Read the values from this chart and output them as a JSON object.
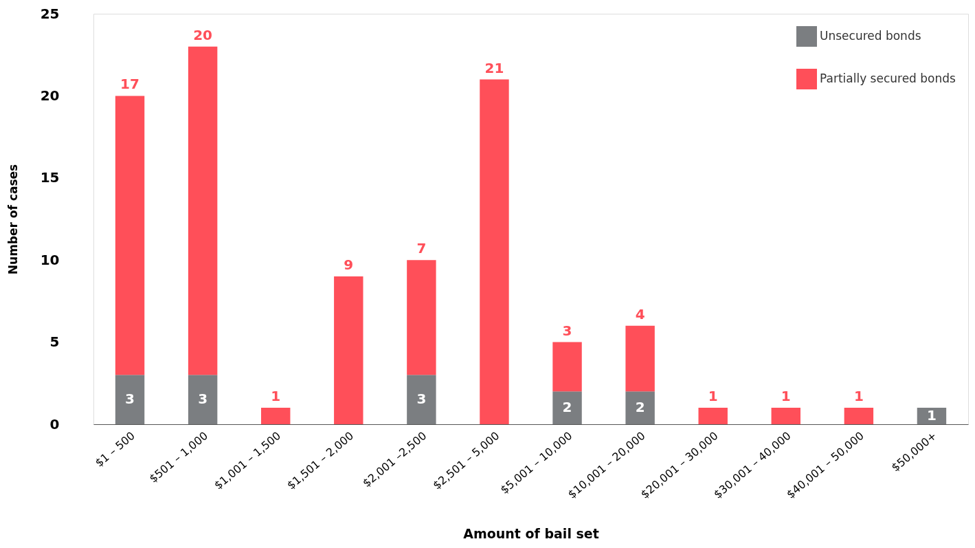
{
  "chart_data": {
    "type": "bar",
    "stacked": true,
    "xlabel": "Amount of bail set",
    "ylabel": "Number of cases",
    "categories": [
      "$1 – 500",
      "$501 – 1,000",
      "$1,001 – 1,500",
      "$1,501 – 2,000",
      "$2,001 –2,500",
      "$2,501 – 5,000",
      "$5,001 – 10,000",
      "$10,001 – 20,000",
      "$20,001 – 30,000",
      "$30,001 – 40,000",
      "$40,001 – 50,000",
      "$50,000+"
    ],
    "series": [
      {
        "name": "Unsecured bonds",
        "color": "#7b7e81",
        "values": [
          3,
          3,
          null,
          null,
          3,
          null,
          2,
          2,
          null,
          null,
          null,
          1
        ]
      },
      {
        "name": "Partially secured bonds",
        "color": "#ff4f59",
        "values": [
          17,
          20,
          1,
          9,
          7,
          21,
          3,
          4,
          1,
          1,
          1,
          null
        ]
      }
    ],
    "ylim": [
      0,
      25
    ],
    "yticks": [
      0,
      5,
      10,
      15,
      20,
      25
    ],
    "grid": false,
    "legend": "top right",
    "data_labels": true
  }
}
